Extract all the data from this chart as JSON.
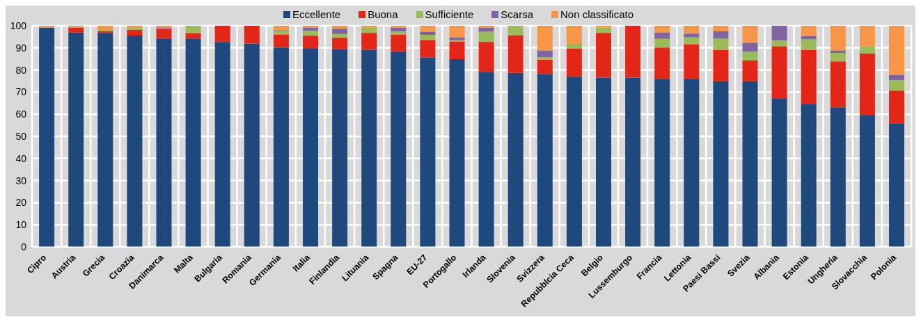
{
  "chart_data": {
    "type": "bar",
    "stacked": true,
    "legend": "top",
    "grid": true,
    "ylim": [
      0,
      100
    ],
    "yticks": [
      0,
      10,
      20,
      30,
      40,
      50,
      60,
      70,
      80,
      90,
      100
    ],
    "categories": [
      "Cipro",
      "Austria",
      "Grecia",
      "Croazia",
      "Danimarca",
      "Malta",
      "Bulgaria",
      "Romania",
      "Germania",
      "Italia",
      "Finlandia",
      "Lituania",
      "Spagna",
      "EU-27",
      "Portogallo",
      "Irlanda",
      "Slovenia",
      "Svizzera",
      "Repubblcia Ceca",
      "Belgio",
      "Lussemburgo",
      "Francia",
      "Lettonia",
      "Paesi Bassi",
      "Svezia",
      "Albania",
      "Estonia",
      "Ungheria",
      "Slovacchia",
      "Polonia"
    ],
    "series": [
      {
        "name": "Eccellente",
        "color": "#1f497d",
        "values": [
          99.1,
          96.9,
          96.6,
          95.6,
          94.3,
          94.3,
          92.7,
          92.0,
          90.2,
          89.6,
          89.5,
          89.1,
          88.3,
          85.7,
          84.9,
          79.2,
          78.7,
          78.2,
          77.0,
          76.6,
          76.6,
          76.0,
          76.0,
          74.9,
          74.9,
          67.2,
          64.7,
          63.1,
          59.4,
          55.9
        ]
      },
      {
        "name": "Buona",
        "color": "#e42618",
        "values": [
          0,
          2.2,
          0.9,
          2.5,
          4.1,
          2.3,
          7.3,
          8.0,
          5.9,
          5.9,
          5.1,
          7.7,
          7.6,
          7.8,
          7.9,
          13.5,
          17.0,
          6.5,
          12.8,
          20.2,
          23.4,
          14.2,
          15.5,
          14.2,
          9.4,
          23.5,
          24.4,
          20.8,
          28.1,
          14.8
        ]
      },
      {
        "name": "Sufficiente",
        "color": "#9bbb59",
        "values": [
          0,
          0.5,
          0.3,
          0.9,
          0.3,
          3.4,
          0,
          0,
          1.6,
          2.2,
          1.7,
          2.4,
          1.6,
          2.4,
          0.7,
          4.6,
          4.3,
          1.1,
          2.0,
          2.4,
          0,
          3.9,
          3.3,
          5.1,
          4.0,
          2.6,
          4.8,
          3.8,
          3.2,
          4.8
        ]
      },
      {
        "name": "Scarsa",
        "color": "#8064a2",
        "values": [
          0,
          0,
          0,
          0,
          0.5,
          0,
          0,
          0,
          0.3,
          1.5,
          2.4,
          0,
          1.6,
          1.4,
          1.2,
          1.9,
          0,
          3.0,
          0,
          0,
          0,
          2.8,
          1.7,
          3.3,
          4.0,
          6.7,
          1.5,
          1.1,
          0,
          2.3
        ]
      },
      {
        "name": "Non classificato",
        "color": "#f79646",
        "values": [
          0.9,
          0.4,
          2.2,
          1.0,
          0.8,
          0,
          0,
          0,
          2.0,
          0.8,
          1.3,
          0.8,
          0.9,
          2.7,
          5.3,
          0.8,
          0,
          11.2,
          8.2,
          0.8,
          0,
          3.1,
          3.5,
          2.5,
          7.7,
          0,
          4.6,
          11.2,
          9.3,
          22.2
        ]
      }
    ]
  }
}
